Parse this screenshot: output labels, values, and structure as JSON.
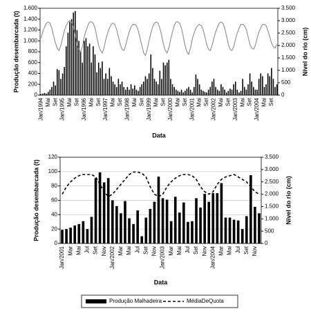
{
  "chart_data": [
    {
      "type": "bar",
      "y_label": "Produção desembarcada (t)",
      "y2_label": "Nível do rio (cm)",
      "x_label": "Data",
      "categories": [
        "Jan/1994",
        null,
        null,
        null,
        "Mai",
        null,
        null,
        null,
        "Set",
        null,
        null,
        null,
        "Jan/1995",
        null,
        null,
        null,
        "Mai",
        null,
        null,
        null,
        "Set",
        null,
        null,
        null,
        "Jan/1996",
        null,
        null,
        null,
        "Mai",
        null,
        null,
        null,
        "Set",
        null,
        null,
        null,
        "Jan/1997",
        null,
        null,
        null,
        "Mai",
        null,
        null,
        null,
        "Set",
        null,
        null,
        null,
        "Jan/1998",
        null,
        null,
        null,
        "Mai",
        null,
        null,
        null,
        "Set",
        null,
        null,
        null,
        "Jan/1999",
        null,
        null,
        null,
        "Mai",
        null,
        null,
        null,
        "Set",
        null,
        null,
        null,
        "Jan/2000",
        null,
        null,
        null,
        "Mai",
        null,
        null,
        null,
        "Set",
        null,
        null,
        null,
        "Jan/2001",
        null,
        null,
        null,
        "Mai",
        null,
        null,
        null,
        "Set",
        null,
        null,
        null,
        "Jan/2002",
        null,
        null,
        null,
        "Mai",
        null,
        null,
        null,
        "Set",
        null,
        null,
        null,
        "Jan/2003",
        null,
        null,
        null,
        "Mai",
        null,
        null,
        null,
        "Set",
        null,
        null,
        null,
        "Jan/2004",
        null,
        null,
        null,
        "Mai",
        null,
        null,
        null,
        "Set",
        null,
        null,
        null
      ],
      "series": [
        {
          "type": "bar",
          "color": "#000000",
          "values": [
            20,
            30,
            40,
            30,
            60,
            100,
            150,
            250,
            180,
            480,
            460,
            300,
            400,
            520,
            900,
            1150,
            1350,
            1400,
            1520,
            1550,
            1200,
            1000,
            800,
            600,
            1000,
            1050,
            900,
            950,
            600,
            900,
            750,
            420,
            600,
            500,
            620,
            300,
            400,
            300,
            500,
            350,
            250,
            200,
            150,
            300,
            200,
            250,
            150,
            100,
            150,
            100,
            200,
            120,
            180,
            100,
            80,
            150,
            200,
            250,
            350,
            300,
            400,
            750,
            500,
            300,
            250,
            200,
            450,
            300,
            600,
            550,
            600,
            650,
            300,
            200,
            150,
            100,
            80,
            60,
            100,
            50,
            80,
            120,
            150,
            100,
            50,
            150,
            380,
            300,
            200,
            100,
            80,
            60,
            50,
            100,
            150,
            250,
            300,
            150,
            100,
            80,
            200,
            150,
            100,
            50,
            80,
            120,
            100,
            200,
            250,
            100,
            50,
            80,
            300,
            150,
            100,
            200,
            400,
            250,
            150,
            100,
            100,
            300,
            400,
            350,
            150,
            200,
            400,
            350,
            500,
            300,
            150,
            200
          ]
        },
        {
          "type": "line",
          "axis": "y2",
          "color": "#808080",
          "values": [
            2300,
            2550,
            2750,
            2900,
            2950,
            2900,
            2700,
            2400,
            2100,
            1900,
            1800,
            2000,
            2300,
            2600,
            2800,
            2950,
            3000,
            2950,
            2750,
            2400,
            2050,
            1850,
            1750,
            1950,
            2350,
            2600,
            2800,
            2950,
            2950,
            2900,
            2700,
            2350,
            2000,
            1800,
            1700,
            1900,
            2250,
            2500,
            2700,
            2850,
            2900,
            2850,
            2650,
            2350,
            2050,
            1850,
            1800,
            2000,
            2300,
            2550,
            2750,
            2850,
            2850,
            2800,
            2600,
            2300,
            2000,
            1700,
            1600,
            1850,
            2200,
            2500,
            2750,
            2900,
            2950,
            2900,
            2700,
            2400,
            2050,
            1800,
            1700,
            1900,
            2250,
            2550,
            2800,
            2950,
            2950,
            2900,
            2700,
            2350,
            2000,
            1750,
            1650,
            1900,
            2250,
            2500,
            2700,
            2800,
            2850,
            2800,
            2650,
            2350,
            2050,
            1850,
            1800,
            2000,
            2300,
            2550,
            2750,
            2900,
            2950,
            2900,
            2700,
            2400,
            2050,
            1850,
            1800,
            1950,
            2250,
            2500,
            2700,
            2850,
            2850,
            2800,
            2650,
            2350,
            2050,
            1900,
            1850,
            2000,
            2300,
            2550,
            2700,
            2850,
            2850,
            2800,
            2600,
            2350,
            2100,
            1950,
            1900,
            2050
          ]
        }
      ],
      "ylim": [
        0,
        1600
      ],
      "yticks": [
        0,
        200,
        400,
        600,
        800,
        {
          "value": 1000,
          "label": "1.000"
        },
        {
          "value": 1200,
          "label": "1.200"
        },
        {
          "value": 1400,
          "label": "1.400"
        },
        {
          "value": 1600,
          "label": "1.600"
        }
      ],
      "y2lim": [
        0,
        3500
      ],
      "y2ticks": [
        0,
        500,
        {
          "value": 1000,
          "label": "1.000"
        },
        {
          "value": 1500,
          "label": "1.500"
        },
        {
          "value": 2000,
          "label": "2.000"
        },
        {
          "value": 2500,
          "label": "2.500"
        },
        {
          "value": 3000,
          "label": "3.000"
        },
        {
          "value": 3500,
          "label": "3.500"
        }
      ],
      "grid": false
    },
    {
      "type": "bar",
      "y_label": "Produção desembarcada (t)",
      "y2_label": "Nível do rio (cm)",
      "x_label": "Data",
      "categories": [
        "Jan/2001",
        null,
        "Mar",
        null,
        "Mai",
        null,
        "Jul",
        null,
        "Set",
        null,
        "Nov",
        null,
        "Jan/2002",
        null,
        "Mar",
        null,
        "Mai",
        null,
        "Jul",
        null,
        "Set",
        null,
        "Nov",
        null,
        "Jan/2003",
        null,
        "Mar",
        null,
        "Mai",
        null,
        "Jul",
        null,
        "Set",
        null,
        "Nov",
        null,
        "Jan/2004",
        null,
        "Mar",
        null,
        "Mai",
        null,
        "Jul",
        null,
        "Set",
        null,
        "Nov",
        null
      ],
      "series": [
        {
          "type": "bar",
          "name": "Produção Malhadeira",
          "color": "#000000",
          "values": [
            19,
            20,
            22,
            25,
            27,
            31,
            20,
            37,
            91,
            99,
            85,
            91,
            60,
            52,
            42,
            59,
            35,
            27,
            46,
            10,
            36,
            48,
            58,
            93,
            63,
            61,
            31,
            65,
            43,
            57,
            30,
            31,
            63,
            50,
            69,
            58,
            70,
            70,
            84,
            36,
            36,
            33,
            32,
            20,
            38,
            95,
            51,
            42
          ]
        },
        {
          "type": "line",
          "axis": "y2",
          "dashed": true,
          "name": "MédiaDeQuota",
          "color": "#000000",
          "values": [
            2000,
            2300,
            2500,
            2650,
            2750,
            2800,
            2800,
            2800,
            2700,
            2400,
            2100,
            1900,
            2000,
            2200,
            2400,
            2600,
            2800,
            2900,
            2900,
            2850,
            2700,
            2300,
            2000,
            1900,
            2000,
            2300,
            2500,
            2650,
            2750,
            2800,
            2800,
            2750,
            2600,
            2300,
            2100,
            2000,
            2100,
            2400,
            2600,
            2700,
            2750,
            2800,
            2700,
            2600,
            2500,
            2300,
            2100,
            2000
          ]
        }
      ],
      "ylim": [
        0,
        120
      ],
      "yticks": [
        0,
        20,
        40,
        60,
        80,
        100,
        120
      ],
      "y2lim": [
        0,
        3500
      ],
      "y2ticks": [
        0,
        500,
        {
          "value": 1000,
          "label": "1.000"
        },
        {
          "value": 1500,
          "label": "1.500"
        },
        {
          "value": 2000,
          "label": "2.000"
        },
        {
          "value": 2500,
          "label": "2.500"
        },
        {
          "value": 3000,
          "label": "3.000"
        },
        {
          "value": 3500,
          "label": "3.500"
        }
      ],
      "grid": true
    }
  ]
}
